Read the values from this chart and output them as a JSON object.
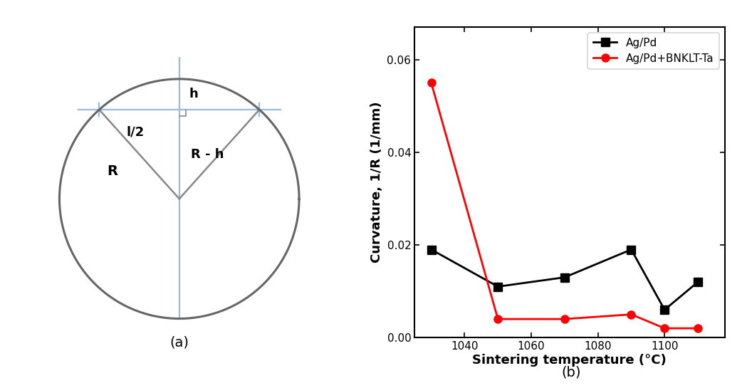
{
  "panel_b": {
    "black_x": [
      1030,
      1050,
      1070,
      1090,
      1100,
      1110
    ],
    "black_y": [
      0.019,
      0.011,
      0.013,
      0.019,
      0.006,
      0.012
    ],
    "red_x": [
      1030,
      1050,
      1070,
      1090,
      1100,
      1110
    ],
    "red_y": [
      0.055,
      0.004,
      0.004,
      0.005,
      0.002,
      0.002
    ],
    "xlabel": "Sintering temperature (°C)",
    "ylabel": "Curvature, 1/R (1/mm)",
    "yticks": [
      0.0,
      0.02,
      0.04,
      0.06
    ],
    "xticks": [
      1040,
      1060,
      1080,
      1100
    ],
    "xlim": [
      1025,
      1118
    ],
    "ylim": [
      0.0,
      0.067
    ],
    "legend1": "Ag/Pd",
    "legend2": "Ag/Pd+BNKLT-Ta",
    "label_b": "(b)"
  },
  "panel_a": {
    "label_a": "(a)",
    "circle_color": "#666666",
    "blue_color": "#99bbdd",
    "gray_color": "#888888",
    "text_R": "R",
    "text_h": "h",
    "text_l2": "l/2",
    "text_Rh": "R - h"
  }
}
